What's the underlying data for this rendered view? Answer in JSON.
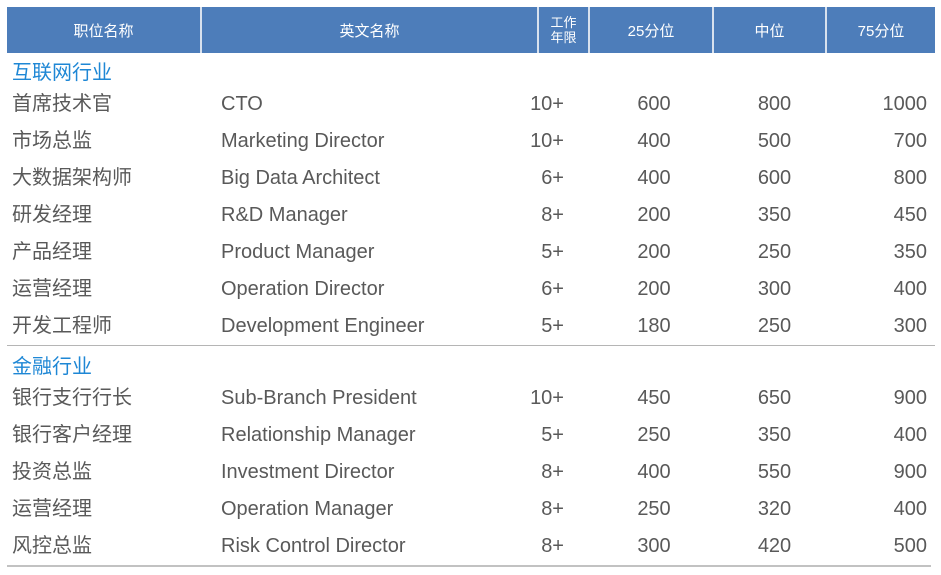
{
  "colors": {
    "header_background": "#4d7dba",
    "header_text": "#ffffff",
    "header_divider": "#d8e1ee",
    "section_title": "#1e87d5",
    "body_text": "#595959",
    "section_separator_line": "#b5b5b5",
    "bottom_border_line": "#c2c2c2"
  },
  "table": {
    "columns": [
      {
        "label": "职位名称"
      },
      {
        "label": "英文名称"
      },
      {
        "label": "工作年限",
        "line1": "工作",
        "line2": "年限"
      },
      {
        "label": "25分位"
      },
      {
        "label": "中位"
      },
      {
        "label": "75分位"
      }
    ],
    "sections": [
      {
        "name": "互联网行业",
        "rows": [
          {
            "cn": "首席技术官",
            "en": "CTO",
            "years": "10+",
            "p25": "600",
            "median": "800",
            "p75": "1000"
          },
          {
            "cn": "市场总监",
            "en": "Marketing Director",
            "years": "10+",
            "p25": "400",
            "median": "500",
            "p75": "700"
          },
          {
            "cn": "大数据架构师",
            "en": "Big Data Architect",
            "years": "6+",
            "p25": "400",
            "median": "600",
            "p75": "800"
          },
          {
            "cn": "研发经理",
            "en": "R&D Manager",
            "years": "8+",
            "p25": "200",
            "median": "350",
            "p75": "450"
          },
          {
            "cn": "产品经理",
            "en": "Product Manager",
            "years": "5+",
            "p25": "200",
            "median": "250",
            "p75": "350"
          },
          {
            "cn": "运营经理",
            "en": "Operation Director",
            "years": "6+",
            "p25": "200",
            "median": "300",
            "p75": "400"
          },
          {
            "cn": "开发工程师",
            "en": "Development Engineer",
            "years": "5+",
            "p25": "180",
            "median": "250",
            "p75": "300"
          }
        ]
      },
      {
        "name": "金融行业",
        "rows": [
          {
            "cn": "银行支行行长",
            "en": "Sub-Branch President",
            "years": "10+",
            "p25": "450",
            "median": "650",
            "p75": "900"
          },
          {
            "cn": "银行客户经理",
            "en": "Relationship Manager",
            "years": "5+",
            "p25": "250",
            "median": "350",
            "p75": "400"
          },
          {
            "cn": "投资总监",
            "en": "Investment Director",
            "years": "8+",
            "p25": "400",
            "median": "550",
            "p75": "900"
          },
          {
            "cn": "运营经理",
            "en": "Operation Manager",
            "years": "8+",
            "p25": "250",
            "median": "320",
            "p75": "400"
          },
          {
            "cn": "风控总监",
            "en": "Risk Control Director",
            "years": "8+",
            "p25": "300",
            "median": "420",
            "p75": "500"
          }
        ]
      }
    ]
  }
}
